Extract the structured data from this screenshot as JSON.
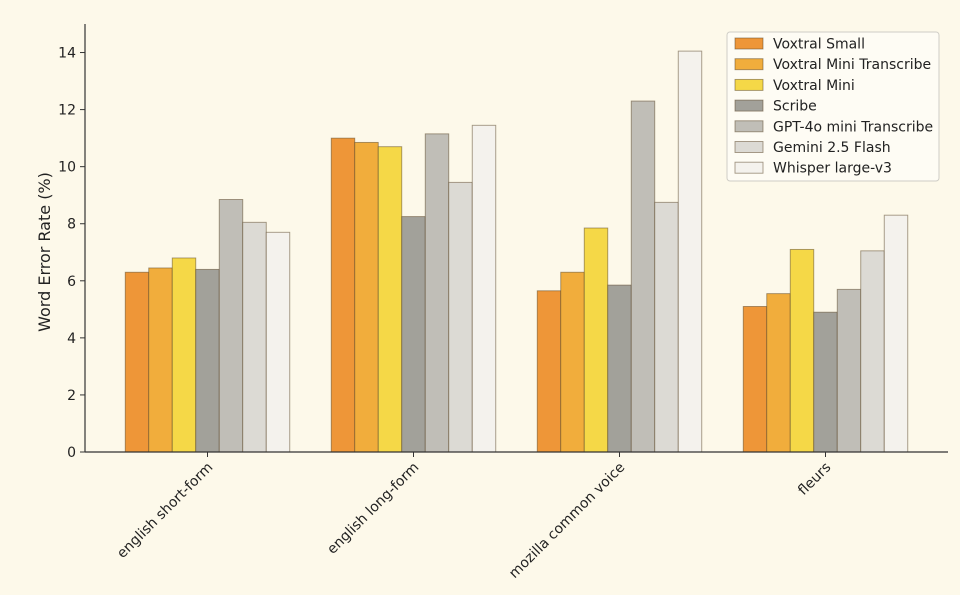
{
  "chart_data": {
    "type": "bar",
    "title": "",
    "xlabel": "",
    "ylabel": "Word Error Rate (%)",
    "ylim": [
      0,
      15
    ],
    "yticks": [
      0,
      2,
      4,
      6,
      8,
      10,
      12,
      14
    ],
    "grid": false,
    "legend_position": "top-right",
    "categories": [
      "english short-form",
      "english long-form",
      "mozilla common voice",
      "fleurs"
    ],
    "series": [
      {
        "name": "Voxtral Small",
        "color": "#ee9638",
        "values": [
          6.3,
          11.0,
          5.65,
          5.1
        ]
      },
      {
        "name": "Voxtral Mini Transcribe",
        "color": "#f1ad3c",
        "values": [
          6.45,
          10.85,
          6.3,
          5.55
        ]
      },
      {
        "name": "Voxtral Mini",
        "color": "#f5d847",
        "values": [
          6.8,
          10.7,
          7.85,
          7.1
        ]
      },
      {
        "name": "Scribe",
        "color": "#a2a19a",
        "values": [
          6.4,
          8.25,
          5.85,
          4.9
        ]
      },
      {
        "name": "GPT-4o mini Transcribe",
        "color": "#c0beb7",
        "values": [
          8.85,
          11.15,
          12.3,
          5.7
        ]
      },
      {
        "name": "Gemini 2.5 Flash",
        "color": "#dcdad4",
        "values": [
          8.05,
          9.45,
          8.75,
          7.05
        ]
      },
      {
        "name": "Whisper large-v3",
        "color": "#f4f2ed",
        "values": [
          7.7,
          11.45,
          14.05,
          8.3
        ]
      }
    ]
  }
}
